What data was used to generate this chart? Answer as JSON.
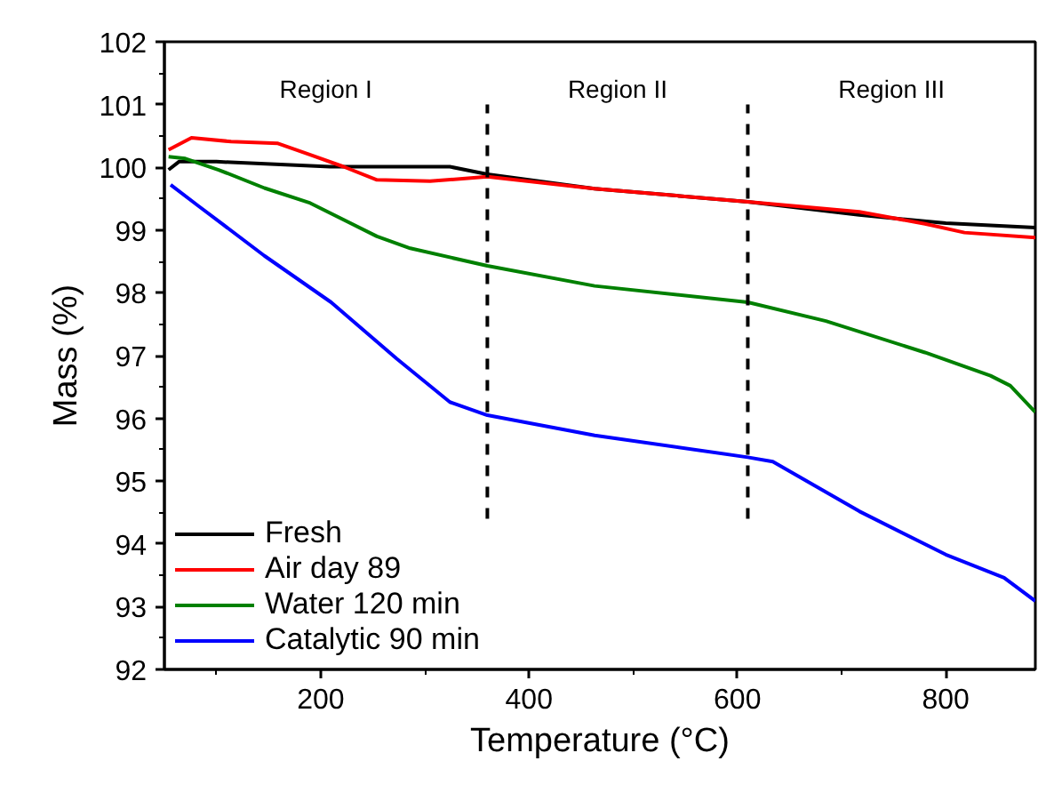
{
  "chart_data": {
    "type": "line",
    "xlabel": "Temperature (°C)",
    "ylabel": "Mass (%)",
    "xlim": [
      50,
      886
    ],
    "ylim": [
      92,
      102
    ],
    "xticks": [
      200,
      400,
      600,
      800
    ],
    "yticks": [
      92,
      93,
      94,
      95,
      96,
      97,
      98,
      99,
      100,
      101,
      102
    ],
    "grid": false,
    "legend": "bottom left",
    "line_style": "solid",
    "marker": "none",
    "ref_lines": [
      {
        "axis": "x",
        "value": 360,
        "color": "#000000",
        "line_style": "dashed"
      },
      {
        "axis": "x",
        "value": 610,
        "color": "#000000",
        "line_style": "dashed"
      }
    ],
    "annotations": [
      "Region I",
      "Region II",
      "Region III"
    ],
    "series": [
      {
        "name": "Fresh",
        "color": "#000000",
        "x": [
          54,
          64,
          100,
          209,
          324,
          360,
          463,
          610,
          717,
          800,
          886
        ],
        "values": [
          99.96,
          100.09,
          100.09,
          100.01,
          100.01,
          99.89,
          99.66,
          99.45,
          99.24,
          99.11,
          99.04
        ]
      },
      {
        "name": "Air day 89",
        "color": "#ff0000",
        "x": [
          54,
          76,
          114,
          159,
          190,
          222,
          254,
          305,
          360,
          463,
          610,
          717,
          780,
          818,
          886
        ],
        "values": [
          100.28,
          100.47,
          100.41,
          100.38,
          100.2,
          100.01,
          99.8,
          99.78,
          99.85,
          99.66,
          99.45,
          99.29,
          99.1,
          98.96,
          98.88
        ]
      },
      {
        "name": "Water 120 min",
        "color": "#008000",
        "x": [
          54,
          70,
          102,
          146,
          190,
          254,
          286,
          360,
          463,
          610,
          685,
          780,
          843,
          862,
          886
        ],
        "values": [
          100.17,
          100.14,
          99.96,
          99.67,
          99.43,
          98.9,
          98.71,
          98.43,
          98.11,
          97.85,
          97.55,
          97.05,
          96.68,
          96.52,
          96.1
        ]
      },
      {
        "name": "Catalytic 90 min",
        "color": "#0000ff",
        "x": [
          56,
          83,
          146,
          210,
          273,
          324,
          360,
          463,
          610,
          634,
          717,
          800,
          856,
          886
        ],
        "values": [
          99.72,
          99.38,
          98.59,
          97.85,
          96.95,
          96.26,
          96.05,
          95.73,
          95.38,
          95.31,
          94.52,
          93.83,
          93.46,
          93.09
        ]
      }
    ]
  }
}
